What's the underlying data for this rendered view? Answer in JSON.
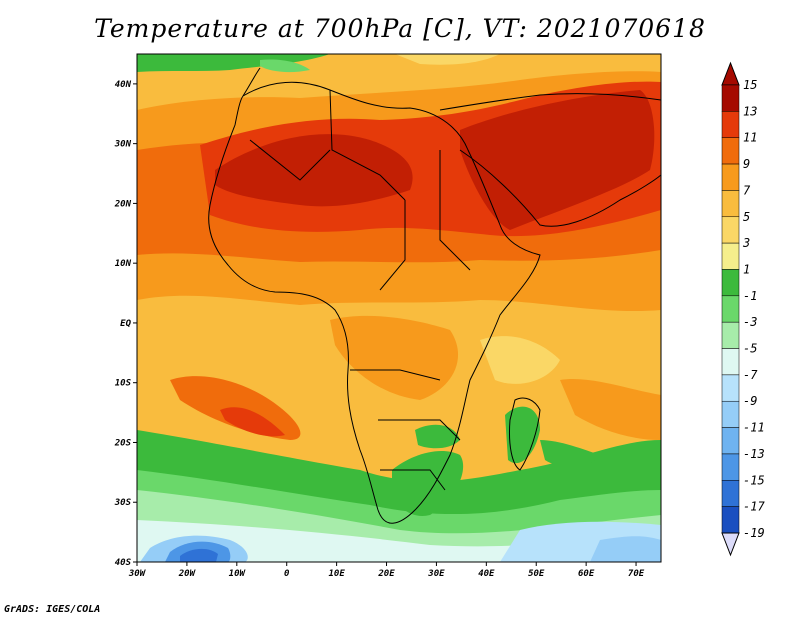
{
  "title": "Temperature at 700hPa [C], VT: 2021070618",
  "credit": "GrADS: IGES/COLA",
  "map": {
    "lat_labels": [
      "40N",
      "30N",
      "20N",
      "10N",
      "EQ",
      "10S",
      "20S",
      "30S",
      "40S"
    ],
    "lon_labels": [
      "30W",
      "20W",
      "10W",
      "0",
      "10E",
      "20E",
      "30E",
      "40E",
      "50E",
      "60E",
      "70E"
    ],
    "lat_values": [
      40,
      30,
      20,
      10,
      0,
      -10,
      -20,
      -30,
      -40
    ],
    "lon_values": [
      -30,
      -20,
      -10,
      0,
      10,
      20,
      30,
      40,
      50,
      60,
      70
    ]
  },
  "colorbar": {
    "labels": [
      "15",
      "13",
      "11",
      "9",
      "7",
      "5",
      "3",
      "1",
      "-1",
      "-3",
      "-5",
      "-7",
      "-9",
      "-11",
      "-13",
      "-15",
      "-17",
      "-19"
    ],
    "colors": [
      "#a50a00",
      "#e53a0a",
      "#f06c0c",
      "#f79a1c",
      "#f9bc3e",
      "#fad766",
      "#f5ee8c",
      "#3cba3c",
      "#6ad86a",
      "#a7ecaa",
      "#dff8f2",
      "#b7e2fb",
      "#95cdf7",
      "#6fb3f0",
      "#4d96e6",
      "#2f72d6",
      "#1a4fc0",
      "#0a1e78"
    ]
  }
}
